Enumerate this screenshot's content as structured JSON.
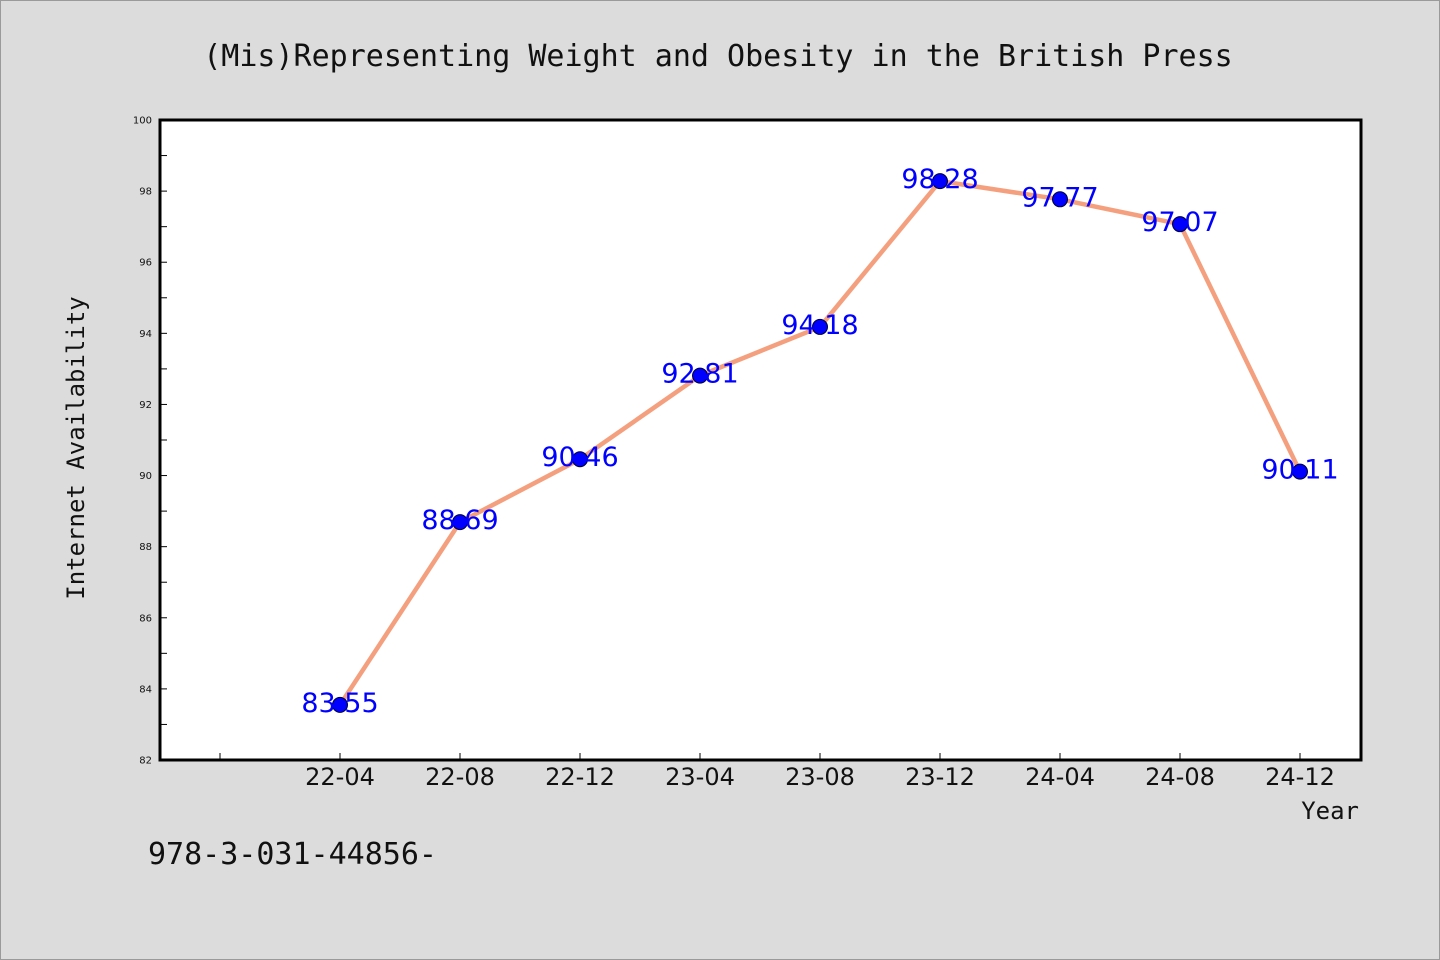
{
  "chart_data": {
    "type": "line",
    "title": "(Mis)Representing Weight and Obesity in the British Press",
    "xlabel": "Year",
    "ylabel": "Internet Availability",
    "categories": [
      "22-04",
      "22-08",
      "22-12",
      "23-04",
      "23-08",
      "23-12",
      "24-04",
      "24-08",
      "24-12"
    ],
    "series": [
      {
        "values": [
          83.55,
          88.69,
          90.46,
          92.81,
          94.18,
          98.28,
          97.77,
          97.07,
          90.11
        ],
        "line_color": "#f4a07e",
        "marker_color": "#0000ff"
      }
    ],
    "data_labels": [
      "83.55",
      "88.69",
      "90.46",
      "92.81",
      "94.18",
      "98.28",
      "97.77",
      "97.07",
      "90.11"
    ],
    "ylim": [
      82,
      100
    ],
    "yticks": [
      82,
      84,
      86,
      88,
      90,
      92,
      94,
      96,
      98,
      100
    ],
    "grid": false,
    "legend": "none"
  },
  "footnote": "978-3-031-44856-",
  "colors": {
    "background": "#dcdcdc",
    "plot_background": "#ffffff",
    "line": "#f4a07e",
    "marker": "#0000ff",
    "data_label": "#0000ff"
  }
}
